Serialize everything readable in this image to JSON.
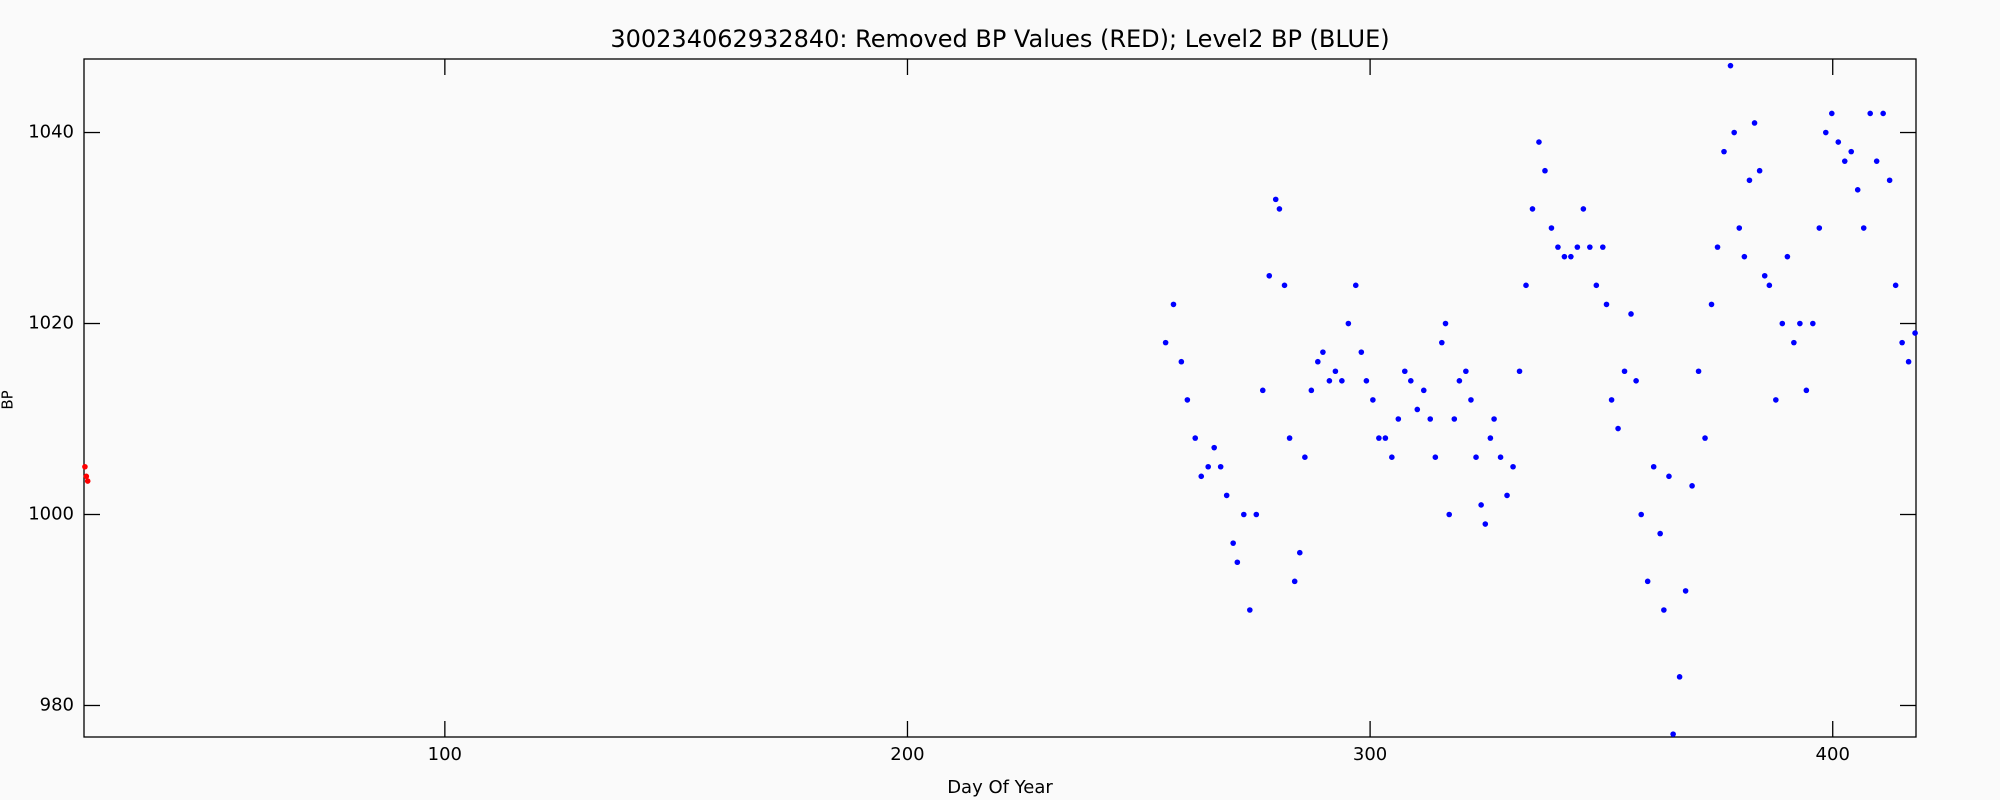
{
  "chart_data": {
    "type": "scatter",
    "title": "300234062932840: Removed BP Values (RED); Level2 BP (BLUE)",
    "x_label": "Day Of Year",
    "y_label": "BP",
    "xlim": [
      22,
      418
    ],
    "ylim": [
      976.7,
      1047.7
    ],
    "xticks": [
      100,
      200,
      300,
      400
    ],
    "yticks": [
      980,
      1000,
      1020,
      1040
    ],
    "series": [
      {
        "color": "#ff0000",
        "x": [
          22.2,
          22.5,
          22.8
        ],
        "values": [
          1005,
          1004,
          1003.5
        ]
      },
      {
        "color": "#0000ff",
        "x": [
          255.8,
          257.5,
          259.2,
          260.5,
          262.2,
          263.5,
          265,
          266.3,
          267.7,
          269,
          270.4,
          271.3,
          272.7,
          274,
          275.4,
          276.8,
          278.2,
          279.6,
          280.4,
          281.5,
          282.6,
          283.7,
          284.8,
          285.9,
          287.3,
          288.7,
          289.8,
          291.2,
          292.5,
          293.9,
          295.3,
          296.9,
          298.1,
          299.2,
          300.6,
          301.9,
          303.3,
          304.7,
          306.1,
          307.5,
          308.8,
          310.2,
          311.6,
          313,
          314.1,
          315.5,
          316.3,
          317.1,
          318.2,
          319.3,
          320.7,
          321.8,
          322.9,
          324,
          324.9,
          326,
          326.8,
          328.2,
          329.6,
          330.9,
          332.3,
          333.7,
          335.1,
          336.5,
          337.8,
          339.2,
          340.6,
          342,
          343.4,
          344.8,
          346.1,
          347.5,
          348.9,
          350.3,
          351.1,
          352.2,
          353.6,
          355,
          356.4,
          357.5,
          358.6,
          360,
          361.3,
          362.7,
          363.5,
          364.6,
          365.5,
          366.9,
          368.2,
          369.6,
          371,
          372.4,
          373.8,
          375.1,
          376.5,
          377.9,
          378.7,
          379.8,
          380.9,
          382,
          383.1,
          384.2,
          385.3,
          386.3,
          387.7,
          389.1,
          390.2,
          391.6,
          392.9,
          394.3,
          395.7,
          397.1,
          398.5,
          399.8,
          401.2,
          402.6,
          404,
          405.4,
          406.7,
          408.1,
          409.5,
          410.9,
          412.3,
          413.6,
          415,
          416.4,
          417.8
        ],
        "values": [
          1018,
          1022,
          1016,
          1012,
          1008,
          1004,
          1005,
          1007,
          1005,
          1002,
          997,
          995,
          1000,
          990,
          1000,
          1013,
          1025,
          1033,
          1032,
          1024,
          1008,
          993,
          996,
          1006,
          1013,
          1016,
          1017,
          1014,
          1015,
          1014,
          1020,
          1024,
          1017,
          1014,
          1012,
          1008,
          1008,
          1006,
          1010,
          1015,
          1014,
          1011,
          1013,
          1010,
          1006,
          1018,
          1020,
          1000,
          1010,
          1014,
          1015,
          1012,
          1006,
          1001,
          999,
          1008,
          1010,
          1006,
          1002,
          1005,
          1015,
          1024,
          1032,
          1039,
          1036,
          1030,
          1028,
          1027,
          1027,
          1028,
          1032,
          1028,
          1024,
          1028,
          1022,
          1012,
          1009,
          1015,
          1021,
          1014,
          1000,
          993,
          1005,
          998,
          990,
          1004,
          977,
          983,
          992,
          1003,
          1015,
          1008,
          1022,
          1028,
          1038,
          1047,
          1040,
          1030,
          1027,
          1035,
          1041,
          1036,
          1025,
          1024,
          1012,
          1020,
          1027,
          1018,
          1020,
          1013,
          1020,
          1030,
          1040,
          1042,
          1039,
          1037,
          1038,
          1034,
          1030,
          1042,
          1037,
          1042,
          1035,
          1024,
          1018,
          1016,
          1019
        ]
      }
    ]
  }
}
